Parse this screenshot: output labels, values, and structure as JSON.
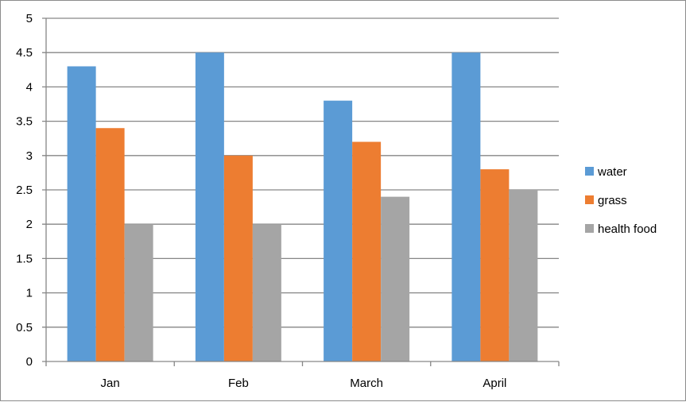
{
  "chart_data": {
    "type": "bar",
    "title": "",
    "xlabel": "",
    "ylabel": "",
    "categories": [
      "Jan",
      "Feb",
      "March",
      "April"
    ],
    "series": [
      {
        "name": "water",
        "color": "#5b9bd5",
        "values": [
          4.3,
          4.5,
          3.8,
          4.5
        ]
      },
      {
        "name": "grass",
        "color": "#ed7d31",
        "values": [
          3.4,
          3.0,
          3.2,
          2.8
        ]
      },
      {
        "name": "health food",
        "color": "#a5a5a5",
        "values": [
          2.0,
          2.0,
          2.4,
          2.5
        ]
      }
    ],
    "ylim": [
      0,
      5
    ],
    "yticks": [
      "0",
      "0.5",
      "1",
      "1.5",
      "2",
      "2.5",
      "3",
      "3.5",
      "4",
      "4.5",
      "5"
    ],
    "grid": true,
    "legend_position": "right"
  }
}
